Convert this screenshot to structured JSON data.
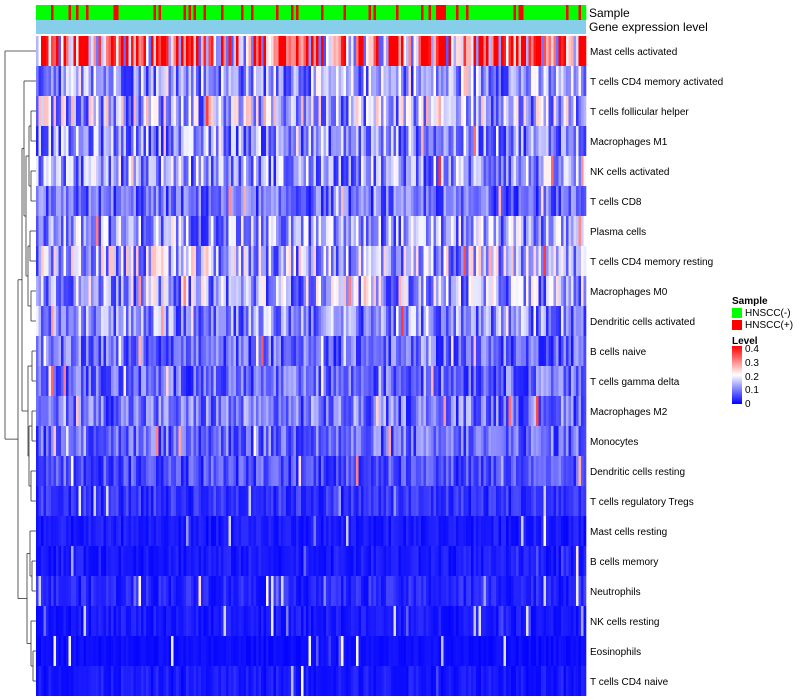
{
  "chart_data": {
    "type": "heatmap",
    "annotation_rows": [
      "Sample",
      "Gene expression level"
    ],
    "rows": [
      "Mast cells activated",
      "T cells CD4 memory activated",
      "T cells follicular helper",
      "Macrophages M1",
      "NK cells activated",
      "T cells CD8",
      "Plasma cells",
      "T cells CD4 memory resting",
      "Macrophages M0",
      "Dendritic cells activated",
      "B cells naive",
      "T cells gamma delta",
      "Macrophages M2",
      "Monocytes",
      "Dendritic cells resting",
      "T cells regulatory  Tregs",
      "Mast cells resting",
      "B cells memory",
      "Neutrophils",
      "NK cells resting",
      "Eosinophils",
      "T cells CD4 naive"
    ],
    "row_mean_levels": [
      0.3,
      0.12,
      0.15,
      0.11,
      0.12,
      0.08,
      0.12,
      0.14,
      0.13,
      0.11,
      0.08,
      0.08,
      0.09,
      0.08,
      0.06,
      0.04,
      0.02,
      0.02,
      0.03,
      0.02,
      0.01,
      0.02
    ],
    "n_samples": 220,
    "sample_legend": {
      "title": "Sample",
      "items": [
        {
          "label": "HNSCC(-)",
          "color": "#00ff00"
        },
        {
          "label": "HNSCC(+)",
          "color": "#ff0000"
        }
      ]
    },
    "level_legend": {
      "title": "Level",
      "min": 0,
      "max": 0.4,
      "ticks": [
        "0.4",
        "0.3",
        "0.2",
        "0.1",
        "0"
      ],
      "colors": {
        "low": "#0000ff",
        "mid": "#ffffff",
        "high": "#ff0000"
      }
    },
    "gene_expression_color": "#87ceeb"
  }
}
